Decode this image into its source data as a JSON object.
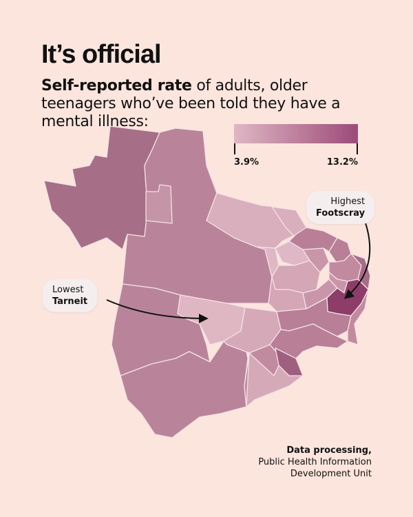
{
  "header": {
    "title": "It’s official",
    "subtitle_bold": "Self-reported rate",
    "subtitle_rest": " of adults, older teenagers who’ve been told they have a mental illness:"
  },
  "legend": {
    "min_label": "3.9%",
    "max_label": "13.2%",
    "min_color": "#dfb7c3",
    "max_color": "#9c4a79"
  },
  "callouts": {
    "highest": {
      "label": "Highest",
      "place": "Footscray"
    },
    "lowest": {
      "label": "Lowest",
      "place": "Tarneit"
    }
  },
  "credit": {
    "heading": "Data processing,",
    "line1": "Public Health Information",
    "line2": "Development Unit"
  },
  "colors": {
    "background": "#fbe5dd",
    "dark": "#a76e88",
    "mid": "#c28a9e",
    "light": "#d9aebd",
    "highest": "#8d3d68"
  }
}
